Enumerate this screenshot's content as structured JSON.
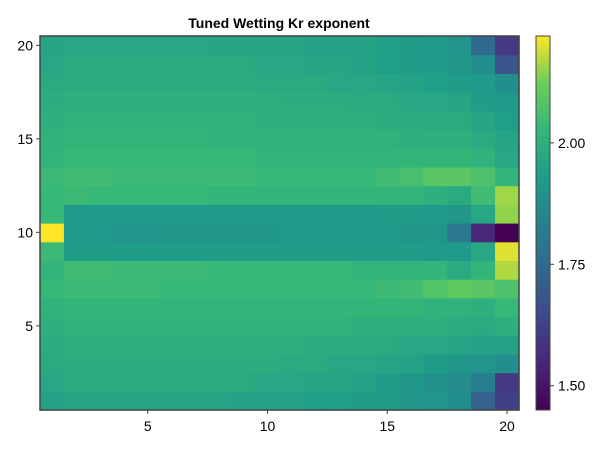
{
  "chart_data": {
    "type": "heatmap",
    "title": "Tuned Wetting Kr exponent",
    "xlabel": "",
    "ylabel": "",
    "x_ticks": [
      5,
      10,
      15,
      20
    ],
    "y_ticks": [
      5,
      10,
      15,
      20
    ],
    "xlim": [
      0.5,
      20.5
    ],
    "ylim": [
      0.5,
      20.5
    ],
    "colorbar": {
      "ticks": [
        1.5,
        1.75,
        2.0
      ],
      "tick_labels": [
        "1.50",
        "1.75",
        "2.00"
      ],
      "range": [
        1.45,
        2.22
      ],
      "colormap": "viridis"
    },
    "grid": false,
    "values": [
      [
        1.95,
        1.96,
        1.96,
        1.96,
        1.96,
        1.96,
        1.96,
        1.96,
        1.95,
        1.95,
        1.95,
        1.94,
        1.94,
        1.93,
        1.93,
        1.91,
        1.9,
        1.88,
        1.72,
        1.62
      ],
      [
        1.97,
        1.98,
        1.98,
        1.98,
        1.98,
        1.98,
        1.98,
        1.98,
        1.98,
        1.97,
        1.97,
        1.96,
        1.96,
        1.95,
        1.93,
        1.91,
        1.89,
        1.87,
        1.82,
        1.6
      ],
      [
        1.98,
        1.99,
        1.99,
        1.99,
        1.99,
        1.99,
        1.99,
        1.99,
        1.99,
        1.99,
        1.98,
        1.98,
        1.97,
        1.97,
        1.96,
        1.95,
        1.93,
        1.91,
        1.9,
        1.88
      ],
      [
        1.99,
        2.0,
        2.0,
        2.0,
        2.0,
        2.0,
        2.0,
        2.0,
        2.0,
        2.0,
        2.0,
        1.99,
        1.99,
        1.99,
        1.98,
        1.97,
        1.97,
        1.96,
        1.95,
        1.95
      ],
      [
        2.0,
        2.01,
        2.01,
        2.01,
        2.01,
        2.01,
        2.01,
        2.01,
        2.01,
        2.01,
        2.01,
        2.01,
        2.01,
        2.0,
        2.0,
        2.0,
        2.0,
        1.99,
        1.98,
        2.0
      ],
      [
        2.01,
        2.02,
        2.02,
        2.02,
        2.02,
        2.02,
        2.02,
        2.02,
        2.02,
        2.02,
        2.02,
        2.02,
        2.02,
        2.02,
        2.02,
        2.02,
        2.01,
        2.01,
        2.0,
        2.03
      ],
      [
        2.03,
        2.04,
        2.04,
        2.04,
        2.04,
        2.03,
        2.03,
        2.03,
        2.03,
        2.03,
        2.03,
        2.03,
        2.03,
        2.03,
        2.04,
        2.05,
        2.08,
        2.1,
        2.09,
        2.07
      ],
      [
        2.02,
        2.05,
        2.05,
        2.04,
        2.04,
        2.04,
        2.04,
        2.03,
        2.03,
        2.03,
        2.03,
        2.03,
        2.03,
        2.02,
        2.02,
        2.02,
        2.02,
        1.98,
        2.02,
        2.17
      ],
      [
        2.04,
        1.93,
        1.93,
        1.93,
        1.93,
        1.93,
        1.93,
        1.93,
        1.93,
        1.93,
        1.93,
        1.93,
        1.93,
        1.93,
        1.93,
        1.93,
        1.92,
        1.92,
        1.97,
        2.2
      ],
      [
        2.22,
        1.92,
        1.92,
        1.9,
        1.9,
        1.91,
        1.91,
        1.91,
        1.91,
        1.91,
        1.92,
        1.92,
        1.92,
        1.92,
        1.92,
        1.91,
        1.91,
        1.8,
        1.55,
        1.45
      ],
      [
        2.03,
        1.92,
        1.92,
        1.92,
        1.92,
        1.92,
        1.92,
        1.92,
        1.92,
        1.92,
        1.92,
        1.92,
        1.92,
        1.92,
        1.93,
        1.93,
        1.92,
        1.91,
        1.97,
        2.15
      ],
      [
        2.03,
        2.04,
        2.03,
        2.03,
        2.03,
        2.03,
        2.03,
        2.02,
        2.02,
        2.02,
        2.02,
        2.02,
        2.02,
        2.02,
        2.02,
        2.02,
        2.0,
        1.98,
        2.05,
        2.16
      ],
      [
        2.04,
        2.05,
        2.05,
        2.04,
        2.04,
        2.04,
        2.04,
        2.04,
        2.04,
        2.03,
        2.03,
        2.03,
        2.03,
        2.03,
        2.05,
        2.06,
        2.09,
        2.09,
        2.07,
        2.02
      ],
      [
        2.02,
        2.03,
        2.03,
        2.03,
        2.03,
        2.03,
        2.03,
        2.03,
        2.03,
        2.02,
        2.02,
        2.02,
        2.02,
        2.02,
        2.02,
        2.02,
        2.02,
        2.02,
        2.01,
        1.97
      ],
      [
        2.01,
        2.02,
        2.02,
        2.02,
        2.02,
        2.02,
        2.02,
        2.01,
        2.01,
        2.01,
        2.01,
        2.01,
        2.01,
        2.01,
        2.01,
        2.0,
        2.0,
        2.0,
        1.98,
        1.96
      ],
      [
        2.0,
        2.01,
        2.01,
        2.01,
        2.01,
        2.01,
        2.01,
        2.01,
        2.01,
        2.0,
        2.0,
        2.0,
        2.0,
        2.0,
        1.99,
        1.99,
        1.98,
        1.98,
        1.96,
        1.94
      ],
      [
        1.99,
        2.0,
        2.0,
        2.0,
        2.0,
        2.0,
        2.0,
        2.0,
        2.0,
        2.0,
        1.99,
        1.99,
        1.99,
        1.98,
        1.98,
        1.97,
        1.97,
        1.96,
        1.93,
        1.92
      ],
      [
        1.98,
        1.99,
        1.99,
        1.99,
        1.99,
        1.99,
        1.99,
        1.99,
        1.99,
        1.98,
        1.98,
        1.98,
        1.97,
        1.97,
        1.96,
        1.95,
        1.94,
        1.93,
        1.92,
        1.88
      ],
      [
        1.97,
        1.98,
        1.98,
        1.98,
        1.98,
        1.98,
        1.98,
        1.98,
        1.98,
        1.97,
        1.97,
        1.96,
        1.96,
        1.95,
        1.94,
        1.93,
        1.92,
        1.91,
        1.88,
        1.68
      ],
      [
        1.96,
        1.97,
        1.97,
        1.97,
        1.97,
        1.97,
        1.97,
        1.96,
        1.96,
        1.96,
        1.96,
        1.95,
        1.95,
        1.95,
        1.94,
        1.93,
        1.92,
        1.9,
        1.75,
        1.6
      ]
    ]
  }
}
